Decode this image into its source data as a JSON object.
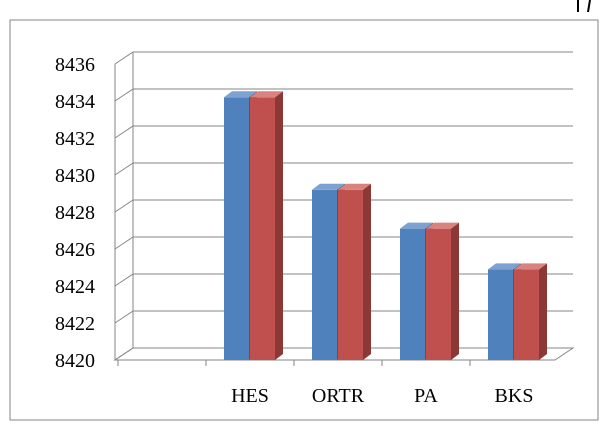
{
  "chart_data": {
    "type": "bar",
    "style": "3d-clustered-column",
    "categories": [
      "HES",
      "ORTR",
      "PA",
      "BKS"
    ],
    "series": [
      {
        "values": [
          8434.2,
          8429.2,
          8427.1,
          8424.9
        ]
      },
      {
        "values": [
          8434.2,
          8429.2,
          8427.1,
          8424.9
        ]
      }
    ],
    "y_ticks": [
      "8420",
      "8422",
      "8424",
      "8426",
      "8428",
      "8430",
      "8432",
      "8434",
      "8436"
    ],
    "ylim": [
      8420,
      8436
    ],
    "grid": true,
    "legend": "none",
    "colors": {
      "series_1": "#4f81bd",
      "series_1_side": "#385d8a",
      "series_1_top": "#7da1d1",
      "series_2": "#c0504d",
      "series_2_side": "#8c3836",
      "series_2_top": "#d9837f",
      "grid": "#868686",
      "frame": "#868686"
    },
    "title": "",
    "xlabel": "",
    "ylabel": ""
  }
}
